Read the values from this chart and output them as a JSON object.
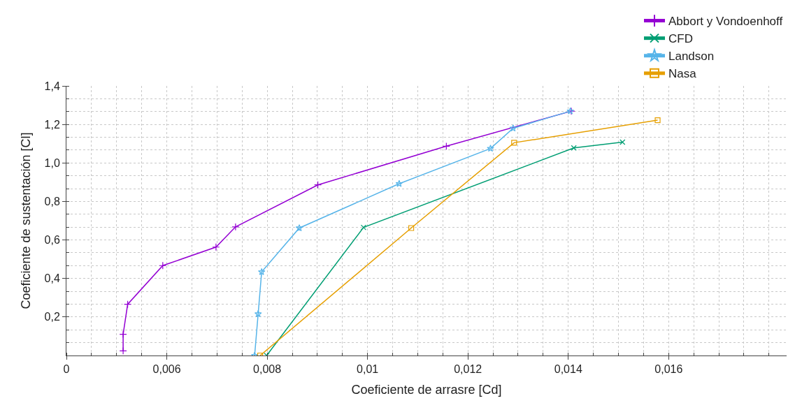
{
  "chart_data": {
    "type": "line",
    "xlabel": "Coeficiente de arrasre [Cd]",
    "ylabel": "Coeficiente de sustentación [Cl]",
    "xlim": [
      0.004,
      0.01835
    ],
    "ylim": [
      0,
      1.4
    ],
    "xticks": [
      {
        "value": 0.004,
        "label": "0"
      },
      {
        "value": 0.006,
        "label": "0,006"
      },
      {
        "value": 0.008,
        "label": "0,008"
      },
      {
        "value": 0.01,
        "label": "0,01"
      },
      {
        "value": 0.012,
        "label": "0,012"
      },
      {
        "value": 0.014,
        "label": "0,014"
      },
      {
        "value": 0.016,
        "label": "0,016"
      }
    ],
    "yticks": [
      {
        "value": 0.2,
        "label": "0,2"
      },
      {
        "value": 0.4,
        "label": "0,4"
      },
      {
        "value": 0.6,
        "label": "0,6"
      },
      {
        "value": 0.8,
        "label": "0,8"
      },
      {
        "value": 1.0,
        "label": "1,0"
      },
      {
        "value": 1.2,
        "label": "1,2"
      },
      {
        "value": 1.4,
        "label": "1,4"
      }
    ],
    "grid": true,
    "legend": "top right",
    "line_style": "solid",
    "series": [
      {
        "name": "Abbort y Vondoenhoff",
        "color": "#9400d3",
        "marker": "cross",
        "x": [
          0.00513,
          0.00513,
          0.00522,
          0.00592,
          0.00698,
          0.00737,
          0.00901,
          0.01157,
          0.01406
        ],
        "values": [
          0.024,
          0.11,
          0.266,
          0.467,
          0.563,
          0.668,
          0.886,
          1.087,
          1.269
        ]
      },
      {
        "name": "CFD",
        "color": "#009e73",
        "marker": "x",
        "x": [
          0.00799,
          0.00992,
          0.01411,
          0.01508
        ],
        "values": [
          0.0,
          0.665,
          1.078,
          1.108
        ]
      },
      {
        "name": "Landson",
        "color": "#56b4e9",
        "marker": "star",
        "x": [
          0.00775,
          0.00782,
          0.00789,
          0.00864,
          0.01063,
          0.01245,
          0.0129,
          0.01404
        ],
        "values": [
          0.0,
          0.216,
          0.434,
          0.662,
          0.892,
          1.075,
          1.18,
          1.269
        ]
      },
      {
        "name": "Nasa",
        "color": "#e69f00",
        "marker": "square",
        "x": [
          0.00786,
          0.01087,
          0.01292,
          0.01578
        ],
        "values": [
          0.0,
          0.662,
          1.105,
          1.222
        ]
      }
    ]
  }
}
